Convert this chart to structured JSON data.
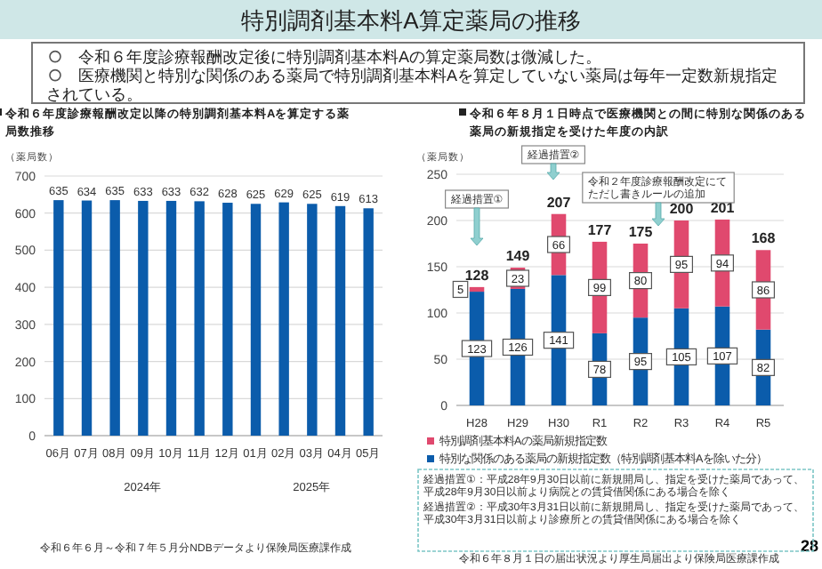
{
  "chart_data": [
    {
      "type": "other",
      "title": "特別調剤基本料A算定薬局の推移",
      "annotations": [
        "令和６年度診療報酬改定後に特別調剤基本料Aの算定薬局数は微減した。",
        "医療機関と特別な関係のある薬局で特別調剤基本料Aを算定していない薬局は毎年一定数新規指定されている。",
        "28"
      ]
    },
    {
      "type": "bar",
      "title": "令和６年度診療報酬改定以降の特別調剤基本料Aを算定する薬局数推移",
      "ylabel": "（薬局数）",
      "categories": [
        "06月",
        "07月",
        "08月",
        "09月",
        "10月",
        "11月",
        "12月",
        "01月",
        "02月",
        "03月",
        "04月",
        "05月"
      ],
      "values": [
        635,
        634,
        635,
        633,
        633,
        632,
        628,
        625,
        629,
        625,
        619,
        613
      ],
      "color": "#0b5cab",
      "ylim": [
        0,
        700
      ],
      "yticks": [
        0,
        100,
        200,
        300,
        400,
        500,
        600,
        700
      ],
      "grid": "y",
      "data_labels": true,
      "annotations": [
        "2024年",
        "2025年",
        "令和６年６月～令和７年５月分NDBデータより保険局医療課作成"
      ]
    },
    {
      "type": "bar",
      "stacked": true,
      "title": "令和６年８月１日時点で医療機関との間に特別な関係のある薬局の新規指定を受けた年度の内訳",
      "ylabel": "（薬局数）",
      "categories": [
        "H28",
        "H29",
        "H30",
        "R1",
        "R2",
        "R3",
        "R4",
        "R5"
      ],
      "series": [
        {
          "name": "特別な関係のある薬局の新規指定数（特別調剤基本料Aを除いた分）",
          "color": "#0b5cab",
          "values": [
            123,
            126,
            141,
            78,
            95,
            105,
            107,
            82
          ]
        },
        {
          "name": "特別調剤基本料Aの薬局新規指定数",
          "color": "#e0496e",
          "values": [
            5,
            23,
            66,
            99,
            80,
            95,
            94,
            86
          ]
        }
      ],
      "ylim": [
        0,
        250
      ],
      "yticks": [
        0,
        50,
        100,
        150,
        200,
        250
      ],
      "grid": "y",
      "data_labels": true,
      "totals": [
        "128",
        "149",
        "207",
        "177",
        "175",
        "200",
        "201",
        "168"
      ],
      "legend": "bottom",
      "annotations": [
        "経過措置①",
        "経過措置②",
        "令和２年度診療報酬改定にてただし書きルールの追加",
        "経過措置①：平成28年9月30日以前に新規開局し、指定を受けた薬局であって、平成28年9月30日以前より病院との賃貸借関係にある場合を除く",
        "経過措置②：平成30年3月31日以前に新規開局し、指定を受けた薬局であって、平成30年3月31日以前より診療所との賃貸借関係にある場合を除く",
        "令和６年８月１日の届出状況より厚生局届出より保険局医療課作成"
      ]
    }
  ]
}
